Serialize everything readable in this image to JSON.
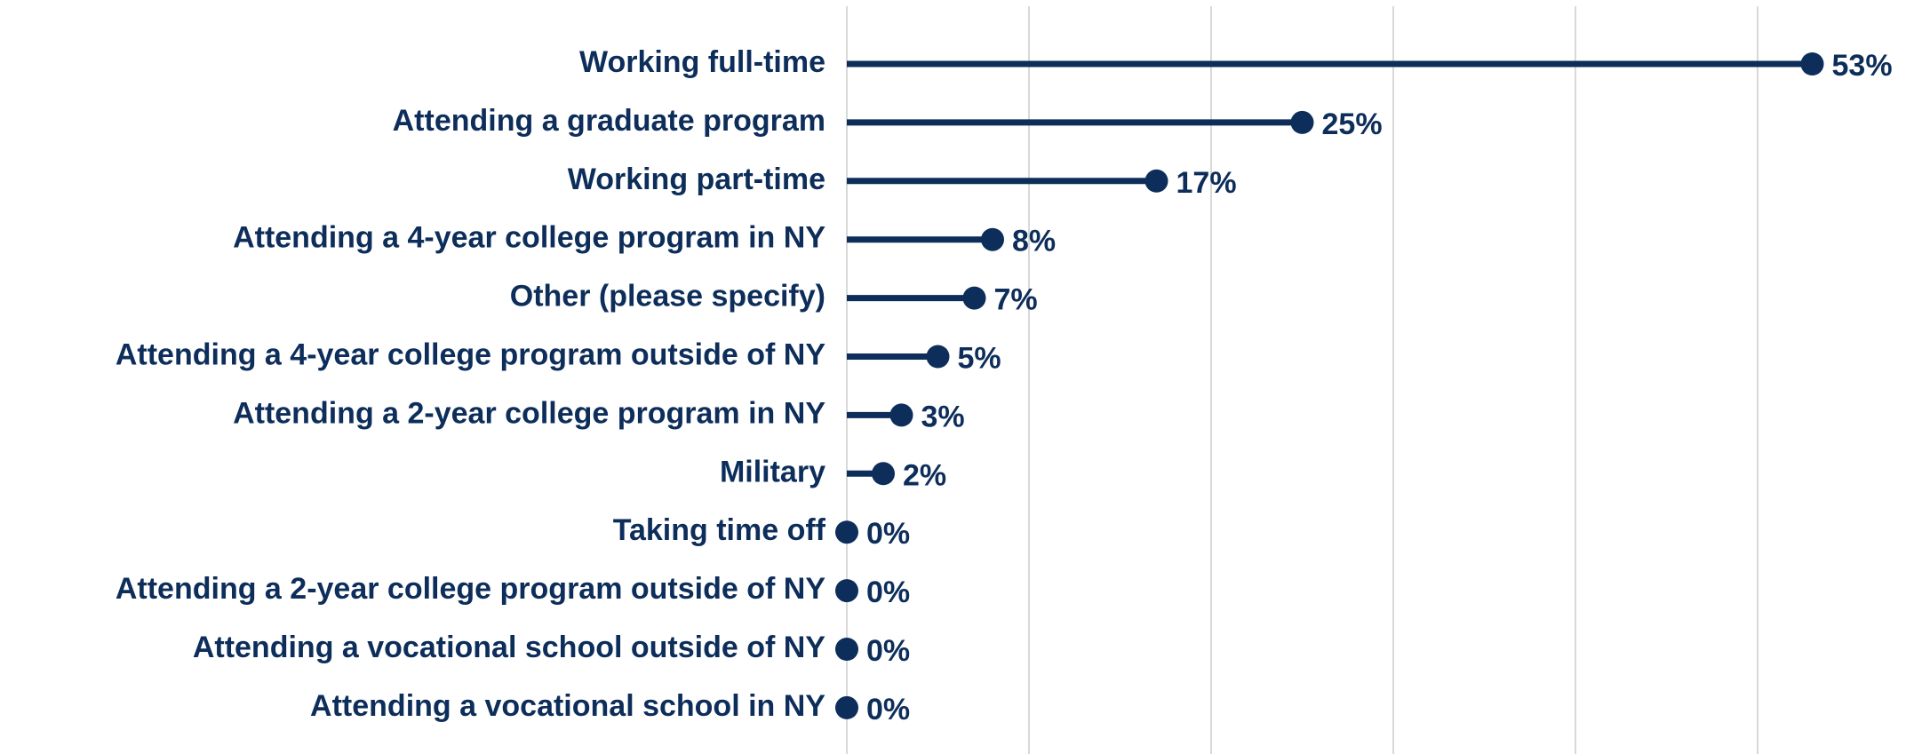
{
  "chart_data": {
    "type": "lollipop",
    "categories": [
      "Working full-time",
      "Attending a graduate program",
      "Working part-time",
      "Attending a 4-year college program in NY",
      "Other (please specify)",
      "Attending a 4-year college program outside of NY",
      "Attending a 2-year college program in NY",
      "Military",
      "Taking time off",
      "Attending a 2-year college program outside of NY",
      "Attending a vocational school outside of NY",
      "Attending a vocational school in NY"
    ],
    "values": [
      53,
      25,
      17,
      8,
      7,
      5,
      3,
      2,
      0,
      0,
      0,
      0
    ],
    "value_labels": [
      "53%",
      "25%",
      "17%",
      "8%",
      "7%",
      "5%",
      "3%",
      "2%",
      "0%",
      "0%",
      "0%",
      "0%"
    ],
    "color": "#0d2d5a",
    "xlim": [
      0,
      58
    ],
    "xticks": [
      0,
      10,
      20,
      30,
      40,
      50
    ],
    "grid": true
  }
}
